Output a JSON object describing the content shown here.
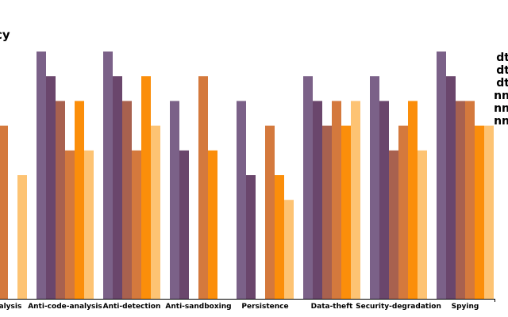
{
  "chart_data": {
    "type": "bar",
    "title": "cy",
    "categories": [
      "ral-analysis",
      "Anti-code-analysis",
      "Anti-detection",
      "Anti-sandboxing",
      "Persistence",
      "Data-theft",
      "Security-degradation",
      "Spying"
    ],
    "ylim": [
      0,
      10
    ],
    "grid": false,
    "legend_position": "right",
    "series": [
      {
        "name": "dt",
        "color": "#7b6188",
        "values": [
          null,
          10,
          10,
          8,
          8,
          9,
          9,
          10
        ]
      },
      {
        "name": "dt",
        "color": "#6a466c",
        "values": [
          null,
          9,
          9,
          6,
          5,
          8,
          8,
          9
        ]
      },
      {
        "name": "dt",
        "color": "#a8614f",
        "values": [
          8,
          8,
          8,
          null,
          null,
          7,
          6,
          8
        ]
      },
      {
        "name": "nn",
        "color": "#d4793d",
        "values": [
          7,
          6,
          6,
          9,
          7,
          8,
          7,
          8
        ]
      },
      {
        "name": "nn",
        "color": "#fb8e0a",
        "values": [
          null,
          8,
          9,
          6,
          5,
          7,
          8,
          7
        ]
      },
      {
        "name": "nn",
        "color": "#fdc373",
        "values": [
          5,
          6,
          7,
          null,
          4,
          8,
          6,
          7
        ]
      }
    ]
  }
}
